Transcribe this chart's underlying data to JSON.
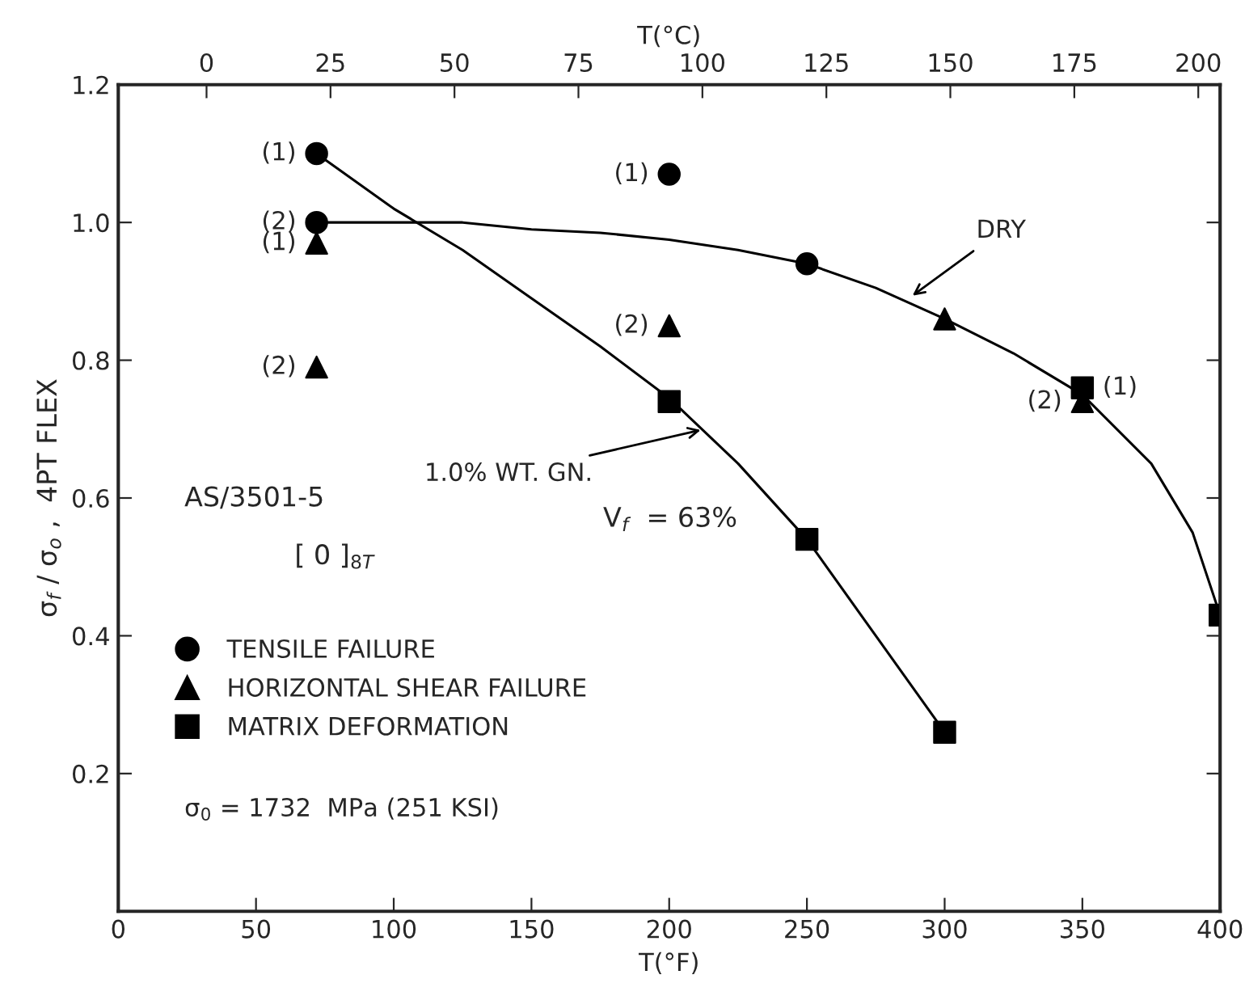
{
  "chart_data": {
    "type": "scatter",
    "xlabel": "T(°F)",
    "ylabel": "σ$_{f}$ / σ$_{o}$ ,  4PT FLEX",
    "x2label": "T(°C)",
    "xlim": [
      0,
      400
    ],
    "xticks": [
      0,
      50,
      100,
      150,
      200,
      250,
      300,
      350,
      400
    ],
    "x2lim": [
      -17.8,
      204.4
    ],
    "x2ticks": [
      0,
      25,
      50,
      75,
      100,
      125,
      150,
      175,
      200
    ],
    "ylim": [
      0,
      1.2
    ],
    "yticks": [
      {
        "value": 0.2,
        "label": "0.2"
      },
      {
        "value": 0.4,
        "label": "0.4"
      },
      {
        "value": 0.6,
        "label": "0.6"
      },
      {
        "value": 0.8,
        "label": "0.8"
      },
      {
        "value": 1.0,
        "label": "1.0"
      },
      {
        "value": 1.2,
        "label": "1.2"
      }
    ],
    "grid": false,
    "legend": "bottom left",
    "series": [
      {
        "name": "TENSILE FAILURE",
        "color": "#000000",
        "marker": "circle",
        "x": [
          72,
          72,
          200,
          250
        ],
        "values": [
          1.1,
          1.0,
          1.07,
          0.94
        ]
      },
      {
        "name": "HORIZONTAL SHEAR FAILURE",
        "color": "#000000",
        "marker": "triangle",
        "x": [
          72,
          72,
          200,
          300,
          350
        ],
        "values": [
          0.97,
          0.79,
          0.85,
          0.86,
          0.74
        ]
      },
      {
        "name": "MATRIX DEFORMATION",
        "color": "#000000",
        "marker": "square",
        "x": [
          200,
          250,
          300,
          350,
          400
        ],
        "values": [
          0.74,
          0.54,
          0.26,
          0.76,
          0.43
        ]
      },
      {
        "type": "line",
        "color": "#000000",
        "x": [
          72,
          100,
          125,
          150,
          175,
          200,
          225,
          250,
          275,
          300,
          325,
          350,
          375,
          390,
          400
        ],
        "values": [
          1.0,
          1.0,
          1.0,
          0.99,
          0.985,
          0.975,
          0.96,
          0.94,
          0.905,
          0.86,
          0.81,
          0.75,
          0.65,
          0.55,
          0.43
        ]
      },
      {
        "type": "line",
        "color": "#000000",
        "x": [
          72,
          100,
          125,
          150,
          175,
          200,
          225,
          250,
          275,
          300
        ],
        "values": [
          1.1,
          1.02,
          0.96,
          0.89,
          0.82,
          0.745,
          0.65,
          0.54,
          0.4,
          0.26
        ]
      }
    ],
    "annotations": [
      {
        "text": "DRY",
        "x": 287,
        "y": 0.89
      },
      {
        "text": "1.0% WT. GN.",
        "x": 213,
        "y": 0.7
      },
      {
        "text": "(1)",
        "x": 72,
        "y": 1.1
      },
      {
        "text": "(2)",
        "x": 72,
        "y": 1.0
      },
      {
        "text": "(1)",
        "x": 200,
        "y": 1.07
      },
      {
        "text": "(1)",
        "x": 72,
        "y": 0.97
      },
      {
        "text": "(2)",
        "x": 72,
        "y": 0.79
      },
      {
        "text": "(2)",
        "x": 200,
        "y": 0.85
      },
      {
        "text": "(2)",
        "x": 350,
        "y": 0.74
      },
      {
        "text": "(1)",
        "x": 350,
        "y": 0.76
      },
      "AS/3501-5",
      "V$_{f}$  = 63%",
      "[ 0 ]$_{8T}$",
      "σ$_{0}$ = 1732  MPa (251 KSI)"
    ]
  }
}
